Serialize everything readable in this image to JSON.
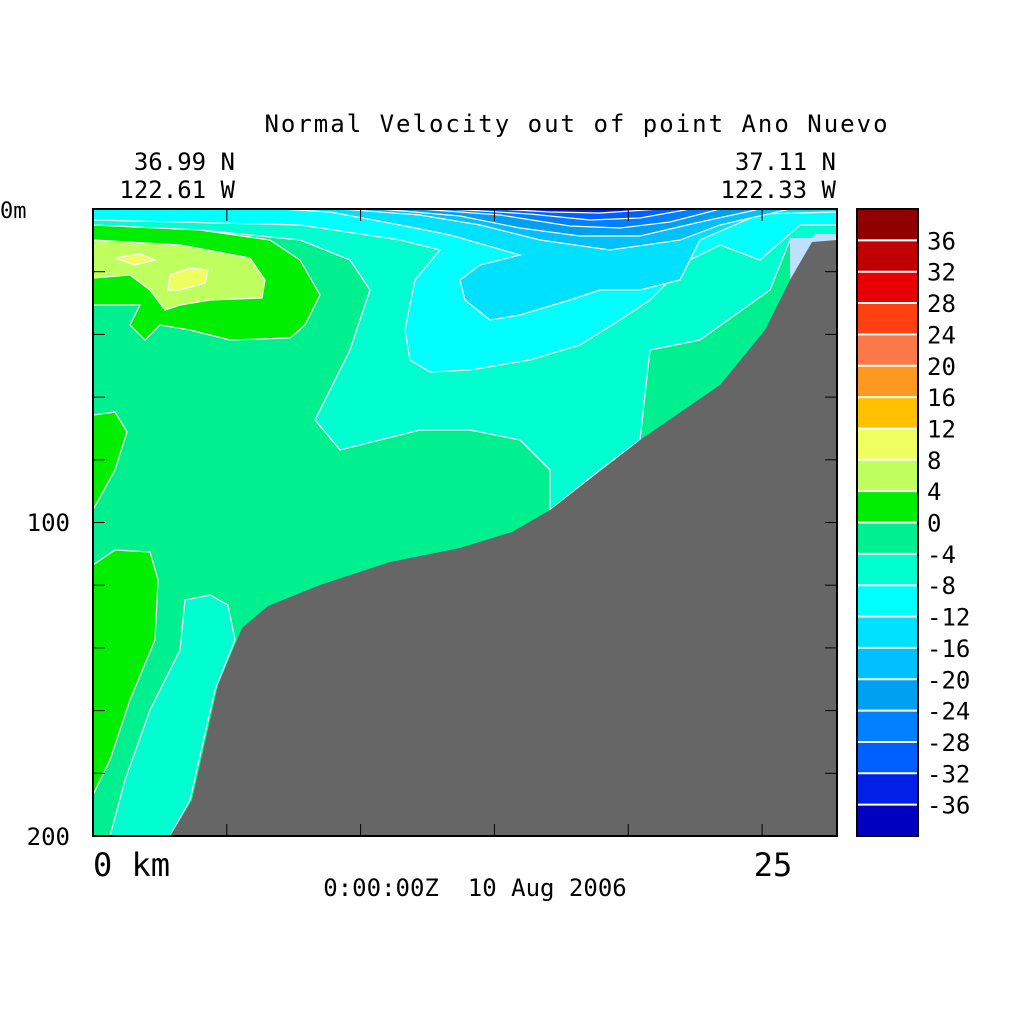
{
  "chart_data": {
    "type": "heatmap",
    "subtype": "filled-contour section",
    "title": "Normal Velocity out of point Ano Nuevo",
    "start_point": {
      "lat": "36.99 N",
      "lon": "122.61 W"
    },
    "end_point": {
      "lat": "37.11 N",
      "lon": "122.33 W"
    },
    "timestamp": "0:00:00Z  10 Aug 2006",
    "xlabel": "km",
    "ylabel": "m",
    "x_tick_labels": [
      "0 km",
      "25"
    ],
    "x_ticks": [
      0,
      5,
      10,
      15,
      20,
      25
    ],
    "xlim": [
      0,
      27.8
    ],
    "y_tick_labels": [
      "0m",
      "100",
      "200"
    ],
    "y_ticks": [
      0,
      20,
      40,
      60,
      80,
      100,
      120,
      140,
      160,
      180,
      200
    ],
    "ylim": [
      0,
      200
    ],
    "y_inverted": true,
    "colorbar": {
      "levels": [
        -40,
        -36,
        -32,
        -28,
        -24,
        -20,
        -16,
        -12,
        -8,
        -4,
        0,
        4,
        8,
        12,
        16,
        20,
        24,
        28,
        32,
        36,
        40
      ],
      "labels": [
        "36",
        "32",
        "28",
        "24",
        "20",
        "16",
        "12",
        "8",
        "4",
        "0",
        "-4",
        "-8",
        "-12",
        "-16",
        "-20",
        "-24",
        "-28",
        "-32",
        "-36"
      ],
      "colors": [
        "#0000c0",
        "#0020e8",
        "#0060ff",
        "#0080ff",
        "#00a0f0",
        "#00c0ff",
        "#00e0ff",
        "#00ffff",
        "#00ffd0",
        "#00f090",
        "#00ee00",
        "#c0ff60",
        "#f0ff60",
        "#ffc000",
        "#ff9820",
        "#ff7848",
        "#ff4010",
        "#e80000",
        "#c00000",
        "#900000"
      ]
    },
    "land_color": "#666666",
    "notes_values": {
      "min_observed": -36,
      "max_observed": 12
    }
  }
}
